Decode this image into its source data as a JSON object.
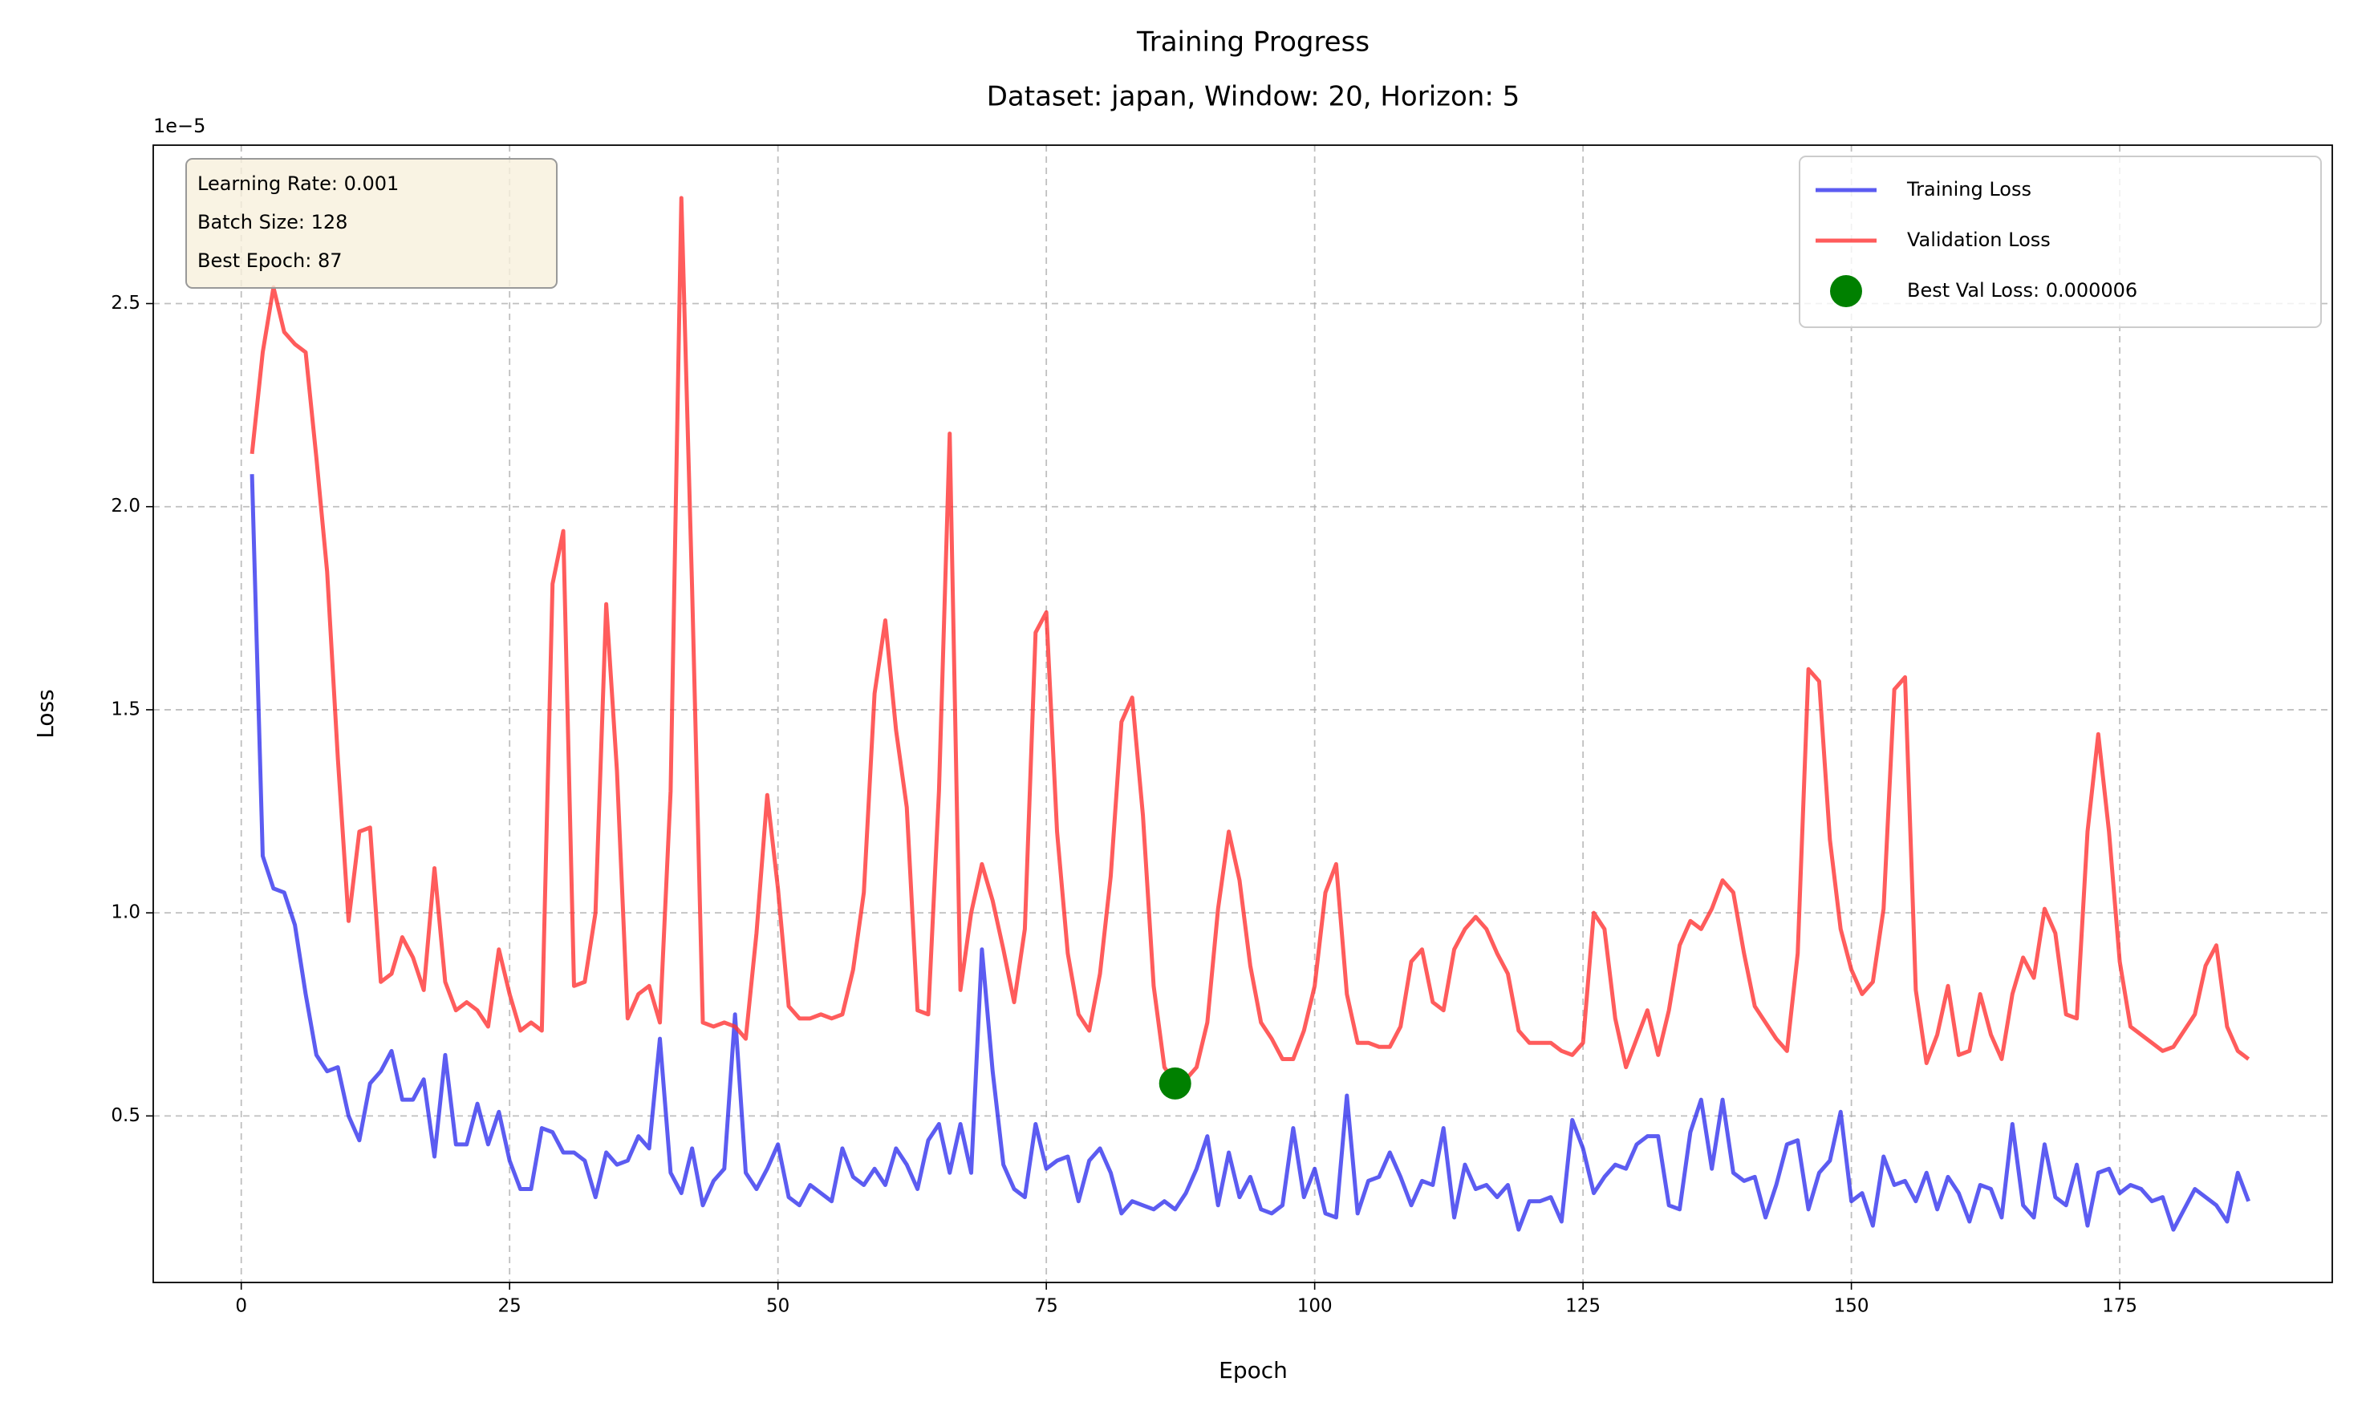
{
  "chart_data": {
    "type": "line",
    "title": "Training Progress",
    "subtitle": "Dataset: japan, Window: 20, Horizon: 5",
    "x_label": "Epoch",
    "y_label": "Loss",
    "y_offset_label": "1e−5",
    "annotation": [
      "Learning Rate: 0.001",
      "Batch Size: 128",
      "Best Epoch: 87"
    ],
    "grid": true,
    "legend": "upper right",
    "xlim": [
      -8.2,
      194.8
    ],
    "ylim": [
      0.09,
      2.89
    ],
    "xticks": [
      0,
      25,
      50,
      75,
      100,
      125,
      150,
      175
    ],
    "yticks": [
      0.5,
      {
        "value": 1,
        "label": "1.0"
      },
      1.5,
      {
        "value": 2,
        "label": "2.0"
      },
      2.5
    ],
    "x": [
      1,
      2,
      3,
      4,
      5,
      6,
      7,
      8,
      9,
      10,
      11,
      12,
      13,
      14,
      15,
      16,
      17,
      18,
      19,
      20,
      21,
      22,
      23,
      24,
      25,
      26,
      27,
      28,
      29,
      30,
      31,
      32,
      33,
      34,
      35,
      36,
      37,
      38,
      39,
      40,
      41,
      42,
      43,
      44,
      45,
      46,
      47,
      48,
      49,
      50,
      51,
      52,
      53,
      54,
      55,
      56,
      57,
      58,
      59,
      60,
      61,
      62,
      63,
      64,
      65,
      66,
      67,
      68,
      69,
      70,
      71,
      72,
      73,
      74,
      75,
      76,
      77,
      78,
      79,
      80,
      81,
      82,
      83,
      84,
      85,
      86,
      87,
      88,
      89,
      90,
      91,
      92,
      93,
      94,
      95,
      96,
      97,
      98,
      99,
      100,
      101,
      102,
      103,
      104,
      105,
      106,
      107,
      108,
      109,
      110,
      111,
      112,
      113,
      114,
      115,
      116,
      117,
      118,
      119,
      120,
      121,
      122,
      123,
      124,
      125,
      126,
      127,
      128,
      129,
      130,
      131,
      132,
      133,
      134,
      135,
      136,
      137,
      138,
      139,
      140,
      141,
      142,
      143,
      144,
      145,
      146,
      147,
      148,
      149,
      150,
      151,
      152,
      153,
      154,
      155,
      156,
      157,
      158,
      159,
      160,
      161,
      162,
      163,
      164,
      165,
      166,
      167,
      168,
      169,
      170,
      171,
      172,
      173,
      174,
      175,
      176,
      177,
      178,
      179,
      180,
      181,
      182,
      183,
      184,
      185,
      186,
      187
    ],
    "series": [
      {
        "name": "Training Loss",
        "color": "#3333ee",
        "values": [
          2.08,
          1.14,
          1.06,
          1.05,
          0.97,
          0.8,
          0.65,
          0.61,
          0.62,
          0.5,
          0.44,
          0.58,
          0.61,
          0.66,
          0.54,
          0.54,
          0.59,
          0.4,
          0.65,
          0.43,
          0.43,
          0.53,
          0.43,
          0.51,
          0.39,
          0.32,
          0.32,
          0.47,
          0.46,
          0.41,
          0.41,
          0.39,
          0.3,
          0.41,
          0.38,
          0.39,
          0.45,
          0.42,
          0.69,
          0.36,
          0.31,
          0.42,
          0.28,
          0.34,
          0.37,
          0.75,
          0.36,
          0.32,
          0.37,
          0.43,
          0.3,
          0.28,
          0.33,
          0.31,
          0.29,
          0.42,
          0.35,
          0.33,
          0.37,
          0.33,
          0.42,
          0.38,
          0.32,
          0.44,
          0.48,
          0.36,
          0.48,
          0.36,
          0.91,
          0.61,
          0.38,
          0.32,
          0.3,
          0.48,
          0.37,
          0.39,
          0.4,
          0.29,
          0.39,
          0.42,
          0.36,
          0.26,
          0.29,
          0.28,
          0.27,
          0.29,
          0.27,
          0.31,
          0.37,
          0.45,
          0.28,
          0.41,
          0.3,
          0.35,
          0.27,
          0.26,
          0.28,
          0.47,
          0.3,
          0.37,
          0.26,
          0.25,
          0.55,
          0.26,
          0.34,
          0.35,
          0.41,
          0.35,
          0.28,
          0.34,
          0.33,
          0.47,
          0.25,
          0.38,
          0.32,
          0.33,
          0.3,
          0.33,
          0.22,
          0.29,
          0.29,
          0.3,
          0.24,
          0.49,
          0.42,
          0.31,
          0.35,
          0.38,
          0.37,
          0.43,
          0.45,
          0.45,
          0.28,
          0.27,
          0.46,
          0.54,
          0.37,
          0.54,
          0.36,
          0.34,
          0.35,
          0.25,
          0.33,
          0.43,
          0.44,
          0.27,
          0.36,
          0.39,
          0.51,
          0.29,
          0.31,
          0.23,
          0.4,
          0.33,
          0.34,
          0.29,
          0.36,
          0.27,
          0.35,
          0.31,
          0.24,
          0.33,
          0.32,
          0.25,
          0.48,
          0.28,
          0.25,
          0.43,
          0.3,
          0.28,
          0.38,
          0.23,
          0.36,
          0.37,
          0.31,
          0.33,
          0.32,
          0.29,
          0.3,
          0.22,
          0.27,
          0.32,
          0.3,
          0.28,
          0.24,
          0.36,
          0.29
        ]
      },
      {
        "name": "Validation Loss",
        "color": "#ff3333",
        "values": [
          2.13,
          2.38,
          2.54,
          2.43,
          2.4,
          2.38,
          2.12,
          1.84,
          1.38,
          0.98,
          1.2,
          1.21,
          0.83,
          0.85,
          0.94,
          0.89,
          0.81,
          1.11,
          0.83,
          0.76,
          0.78,
          0.76,
          0.72,
          0.91,
          0.8,
          0.71,
          0.73,
          0.71,
          1.81,
          1.94,
          0.82,
          0.83,
          1.0,
          1.76,
          1.35,
          0.74,
          0.8,
          0.82,
          0.73,
          1.3,
          2.76,
          1.8,
          0.73,
          0.72,
          0.73,
          0.72,
          0.69,
          0.95,
          1.29,
          1.06,
          0.77,
          0.74,
          0.74,
          0.75,
          0.74,
          0.75,
          0.86,
          1.05,
          1.54,
          1.72,
          1.45,
          1.26,
          0.76,
          0.75,
          1.3,
          2.18,
          0.81,
          1.0,
          1.12,
          1.03,
          0.91,
          0.78,
          0.96,
          1.69,
          1.74,
          1.2,
          0.9,
          0.75,
          0.71,
          0.85,
          1.09,
          1.47,
          1.53,
          1.24,
          0.82,
          0.62,
          0.58,
          0.59,
          0.62,
          0.73,
          1.01,
          1.2,
          1.08,
          0.87,
          0.73,
          0.69,
          0.64,
          0.64,
          0.71,
          0.82,
          1.05,
          1.12,
          0.8,
          0.68,
          0.68,
          0.67,
          0.67,
          0.72,
          0.88,
          0.91,
          0.78,
          0.76,
          0.91,
          0.96,
          0.99,
          0.96,
          0.9,
          0.85,
          0.71,
          0.68,
          0.68,
          0.68,
          0.66,
          0.65,
          0.68,
          1.0,
          0.96,
          0.74,
          0.62,
          0.69,
          0.76,
          0.65,
          0.76,
          0.92,
          0.98,
          0.96,
          1.01,
          1.08,
          1.05,
          0.9,
          0.77,
          0.73,
          0.69,
          0.66,
          0.9,
          1.6,
          1.57,
          1.18,
          0.96,
          0.86,
          0.8,
          0.83,
          1.01,
          1.55,
          1.58,
          0.81,
          0.63,
          0.7,
          0.82,
          0.65,
          0.66,
          0.8,
          0.7,
          0.64,
          0.8,
          0.89,
          0.84,
          1.01,
          0.95,
          0.75,
          0.74,
          1.2,
          1.44,
          1.2,
          0.88,
          0.72,
          0.7,
          0.68,
          0.66,
          0.67,
          0.71,
          0.75,
          0.87,
          0.92,
          0.72,
          0.66,
          0.64
        ]
      },
      {
        "name": "Best Val Loss: 0.000006",
        "type": "scatter",
        "color": "#008000",
        "x": [
          87
        ],
        "values": [
          0.58
        ]
      }
    ]
  }
}
